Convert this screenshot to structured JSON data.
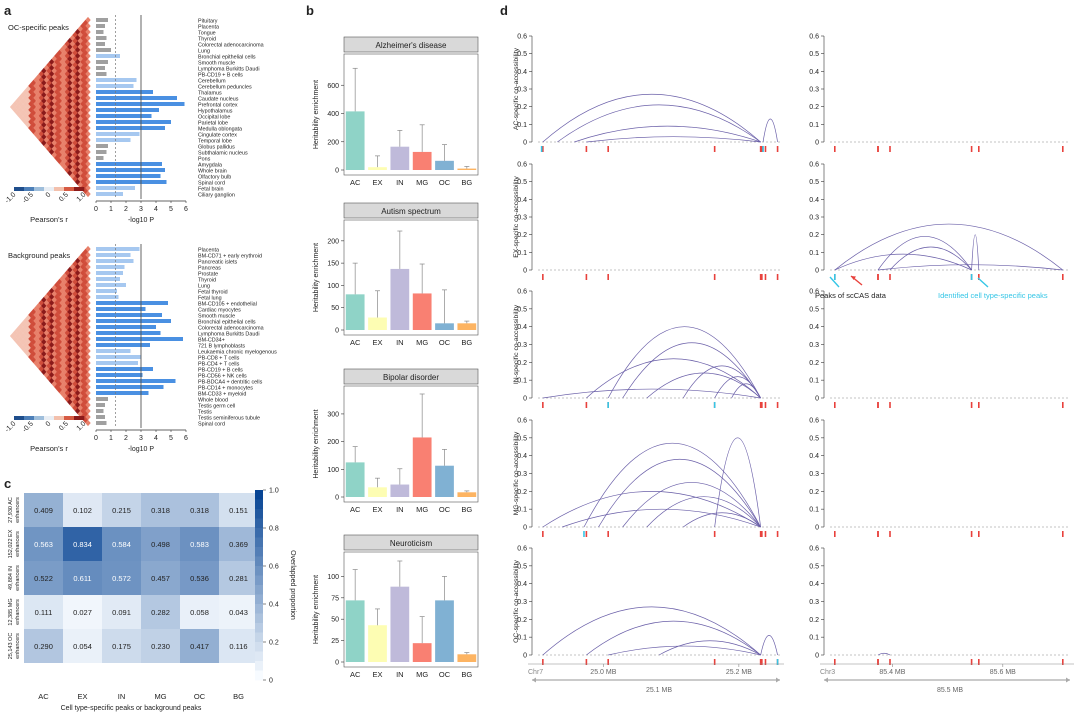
{
  "panel_letters": {
    "a": "a",
    "b": "b",
    "c": "c",
    "d": "d"
  },
  "colors": {
    "AC": "#8fd3c7",
    "EX": "#fdfdb3",
    "IN": "#bfbada",
    "MG": "#f98072",
    "OC": "#80b1d3",
    "BG": "#fdb462",
    "arc": "#6a5fa8",
    "peak_red": "#e8413c",
    "peak_cyan": "#35c6e6",
    "bar_light": "#a6c8f0",
    "bar_dark": "#4a90e2",
    "bar_grey": "#a0a0a0"
  },
  "panel_a": {
    "top_title": "OC-specific peaks",
    "bottom_title": "Background peaks",
    "colorbar_label": "Pearson's r",
    "colorbar_ticks": [
      "-1.0",
      "-0.5",
      "0",
      "0.5",
      "1.0"
    ],
    "x_axis_label": "-log10 P",
    "x_ticks": [
      "0",
      "1",
      "2",
      "3",
      "4",
      "5",
      "6"
    ]
  },
  "chart_data": [
    {
      "id": "a-top",
      "type": "bar",
      "title": "OC-specific peaks",
      "xlabel": "-log10 P",
      "xlim": [
        0,
        6
      ],
      "thresholds": [
        1.3,
        3.0
      ],
      "categories": [
        "Pituitary",
        "Placenta",
        "Tongue",
        "Thyroid",
        "Colorectal adenocarcinoma",
        "Lung",
        "Bronchial epithelial cells",
        "Smooth muscle",
        "Lymphoma Burkitts Daudi",
        "PB-CD19 + B cells",
        "Cerebellum",
        "Cerebellum peduncles",
        "Thalamus",
        "Caudate nucleus",
        "Prefrontal cortex",
        "Hypothalamus",
        "Occipital lobe",
        "Parietal lobe",
        "Medulla oblongata",
        "Cingulate cortex",
        "Temporal lobe",
        "Globus pallidus",
        "Subthalamic nucleus",
        "Pons",
        "Amygdala",
        "Whole brain",
        "Olfactory bulb",
        "Spinal cord",
        "Fetal brain",
        "Ciliary ganglion"
      ],
      "values": [
        0.8,
        0.6,
        0.5,
        0.7,
        0.6,
        1.0,
        1.6,
        0.8,
        0.6,
        0.7,
        2.7,
        2.5,
        3.8,
        5.4,
        5.9,
        4.2,
        3.7,
        5.0,
        4.6,
        2.9,
        2.3,
        0.8,
        0.7,
        0.5,
        4.4,
        4.6,
        4.3,
        4.7,
        2.6,
        1.8
      ],
      "bar_shade": [
        "grey",
        "grey",
        "grey",
        "grey",
        "grey",
        "grey",
        "light",
        "grey",
        "grey",
        "grey",
        "light",
        "light",
        "dark",
        "dark",
        "dark",
        "dark",
        "dark",
        "dark",
        "dark",
        "light",
        "light",
        "grey",
        "grey",
        "grey",
        "dark",
        "dark",
        "dark",
        "dark",
        "light",
        "light"
      ]
    },
    {
      "id": "a-bottom",
      "type": "bar",
      "title": "Background peaks",
      "xlabel": "-log10 P",
      "xlim": [
        0,
        6
      ],
      "thresholds": [
        1.3,
        3.0
      ],
      "categories": [
        "Placenta",
        "BM-CD71 + early erythroid",
        "Pancreatic islets",
        "Pancreas",
        "Prostate",
        "Thyroid",
        "Lung",
        "Fetal thyroid",
        "Fetal lung",
        "BM-CD105 + endothelial",
        "Cardiac myocytes",
        "Smooth muscle",
        "Bronchial epithelial cells",
        "Colorectal adenocarcinoma",
        "Lymphoma Burkitts Daudi",
        "BM-CD34+",
        "721 B lymphoblasts",
        "Leukaemia chronic myelogenous",
        "PB-CD8 + T cells",
        "PB-CD4 + T cells",
        "PB-CD19 + B cells",
        "PB-CD56 + NK cells",
        "PB-BDCA4 + dentritic cells",
        "PB-CD14 + monocytes",
        "BM-CD33 + myeloid",
        "Whole blood",
        "Testis germ cell",
        "Testis",
        "Testis seminiferous tubule",
        "Spinal cord"
      ],
      "values": [
        2.9,
        2.3,
        2.5,
        1.9,
        1.8,
        1.6,
        2.0,
        1.4,
        1.5,
        4.8,
        3.3,
        4.4,
        5.0,
        4.0,
        4.3,
        5.8,
        3.6,
        2.3,
        3.0,
        2.8,
        3.8,
        3.1,
        5.3,
        4.5,
        3.5,
        0.8,
        0.6,
        0.5,
        0.6,
        0.7
      ],
      "bar_shade": [
        "light",
        "light",
        "light",
        "light",
        "light",
        "light",
        "light",
        "light",
        "light",
        "dark",
        "dark",
        "dark",
        "dark",
        "dark",
        "dark",
        "dark",
        "dark",
        "light",
        "light",
        "light",
        "dark",
        "dark",
        "dark",
        "dark",
        "dark",
        "grey",
        "grey",
        "grey",
        "grey",
        "grey"
      ]
    },
    {
      "id": "b-alz",
      "type": "bar",
      "title": "Alzheimer's disease",
      "ylabel": "Heritability enrichment",
      "categories": [
        "AC",
        "EX",
        "IN",
        "MG",
        "OC",
        "BG"
      ],
      "values": [
        415,
        20,
        165,
        128,
        65,
        10
      ],
      "err": [
        720,
        100,
        280,
        320,
        180,
        25
      ],
      "ylim": [
        0,
        800
      ],
      "yticks": [
        "0",
        "200",
        "400",
        "600"
      ]
    },
    {
      "id": "b-aut",
      "type": "bar",
      "title": "Autism spectrum",
      "ylabel": "Heritability enrichment",
      "categories": [
        "AC",
        "EX",
        "IN",
        "MG",
        "OC",
        "BG"
      ],
      "values": [
        80,
        28,
        137,
        82,
        15,
        15
      ],
      "err": [
        150,
        88,
        222,
        148,
        90,
        20
      ],
      "ylim": [
        0,
        240
      ],
      "yticks": [
        "0",
        "50",
        "100",
        "150",
        "200"
      ]
    },
    {
      "id": "b-bip",
      "type": "bar",
      "title": "Bipolar disorder",
      "ylabel": "Heritability enrichment",
      "categories": [
        "AC",
        "EX",
        "IN",
        "MG",
        "OC",
        "BG"
      ],
      "values": [
        125,
        35,
        45,
        215,
        113,
        17
      ],
      "err": [
        182,
        68,
        102,
        372,
        172,
        22
      ],
      "ylim": [
        0,
        390
      ],
      "yticks": [
        "0",
        "100",
        "200",
        "300"
      ]
    },
    {
      "id": "b-neu",
      "type": "bar",
      "title": "Neuroticism",
      "ylabel": "Heritability enrichment",
      "categories": [
        "AC",
        "EX",
        "IN",
        "MG",
        "OC",
        "BG"
      ],
      "values": [
        72,
        43,
        88,
        22,
        72,
        9
      ],
      "err": [
        108,
        62,
        118,
        53,
        100,
        11
      ],
      "ylim": [
        0,
        125
      ],
      "yticks": [
        "0",
        "25",
        "50",
        "75",
        "100"
      ]
    },
    {
      "id": "c",
      "type": "heatmap",
      "title": "",
      "xlabel": "Cell type-specific peaks or background peaks",
      "colorbar_label": "Overlapped proportion",
      "colorbar_ticks": [
        "0",
        "0.2",
        "0.4",
        "0.6",
        "0.8",
        "1.0"
      ],
      "columns": [
        "AC",
        "EX",
        "IN",
        "MG",
        "OC",
        "BG"
      ],
      "rows": [
        "27,930 AC enhancers",
        "152,022 EX enhancers",
        "49,884 IN enhancers",
        "12,385 MG enhancers",
        "25,143 OC enhancers"
      ],
      "values": [
        [
          0.409,
          0.102,
          0.215,
          0.318,
          0.318,
          0.151
        ],
        [
          0.563,
          0.834,
          0.584,
          0.498,
          0.583,
          0.369
        ],
        [
          0.522,
          0.611,
          0.572,
          0.457,
          0.536,
          0.281
        ],
        [
          0.111,
          0.027,
          0.091,
          0.282,
          0.058,
          0.043
        ],
        [
          0.29,
          0.054,
          0.175,
          0.23,
          0.417,
          0.116
        ]
      ],
      "labels": [
        [
          "0.409",
          "0.102",
          "0.215",
          "0.318",
          "0.318",
          "0.151"
        ],
        [
          "0.563",
          "0.834",
          "0.584",
          "0.498",
          "0.583",
          "0.369"
        ],
        [
          "0.522",
          "0.611",
          "0.572",
          "0.457",
          "0.536",
          "0.281"
        ],
        [
          "0.111",
          "0.027",
          "0.091",
          "0.282",
          "0.058",
          "0.043"
        ],
        [
          "0.290",
          "0.054",
          "0.175",
          "0.230",
          "0.417",
          "0.116"
        ]
      ]
    },
    {
      "id": "d",
      "type": "line",
      "ylabels": [
        "AC-specific co-accessibility",
        "EX-specific co-accessibility",
        "IN-specific co-accessibility",
        "MG-specific co-accessibility",
        "OC-specific co-accessibility"
      ],
      "yticks": [
        "0",
        "0.1",
        "0.2",
        "0.3",
        "0.4",
        "0.5",
        "0.6"
      ],
      "ylim": [
        0,
        0.6
      ],
      "left_region": {
        "chrom": "Chr7",
        "xticks": [
          "25.0 MB",
          "25.2 MB"
        ],
        "span_label": "25.1 MB"
      },
      "right_region": {
        "chrom": "Chr3",
        "xticks": [
          "85.4 MB",
          "85.6 MB"
        ],
        "span_label": "85.5 MB"
      },
      "annotation_red": "Peaks of scCAS data",
      "annotation_cyan": "Identified cell type-specific peaks"
    }
  ]
}
